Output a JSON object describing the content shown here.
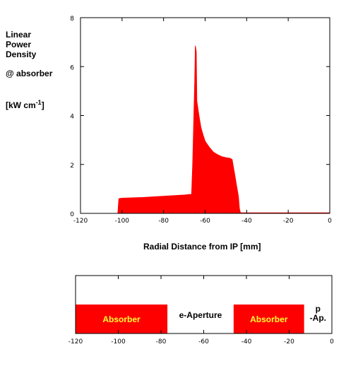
{
  "labels": {
    "y_line1": "Linear",
    "y_line2": "Power",
    "y_line3": "Density",
    "y_line4": "@ absorber",
    "y_unit_base": "[kW cm",
    "y_unit_exp": "-1",
    "y_unit_end": "]",
    "xlabel": "Radial Distance from IP [mm]"
  },
  "colors": {
    "fill": "#ff0000",
    "text_on_fill": "#ffff33",
    "axis": "#000000"
  },
  "chart_data": [
    {
      "type": "area",
      "title": "",
      "xlabel": "Radial Distance from IP [mm]",
      "ylabel": "Linear Power Density @ absorber [kW cm-1]",
      "xlim": [
        -120,
        0
      ],
      "ylim": [
        0,
        8
      ],
      "x_ticks": [
        -120,
        -100,
        -80,
        -60,
        -40,
        -20,
        0
      ],
      "x_tick_labels": [
        "-120",
        "-100",
        "-80",
        "-60",
        "-40",
        "-20",
        "0"
      ],
      "y_ticks": [
        0,
        2,
        4,
        6,
        8
      ],
      "y_tick_labels": [
        "0",
        "2",
        "4",
        "6",
        "8"
      ],
      "grid": false,
      "series": [
        {
          "x": [
            -102,
            -101.5,
            -100,
            -90,
            -80,
            -70,
            -66.5,
            -66,
            -65,
            -64.7,
            -64.3,
            -64,
            -63,
            -62,
            -61,
            -60,
            -58,
            -56,
            -54,
            -52,
            -50,
            -48,
            -47,
            -46,
            -45,
            -44,
            -43.5,
            -43,
            -30,
            -20,
            -10,
            0
          ],
          "y": [
            0,
            0.6,
            0.62,
            0.65,
            0.7,
            0.75,
            0.78,
            2.0,
            5.4,
            6.85,
            6.6,
            4.6,
            4.0,
            3.5,
            3.2,
            2.95,
            2.7,
            2.5,
            2.4,
            2.32,
            2.28,
            2.25,
            2.2,
            1.7,
            1.2,
            0.7,
            0.2,
            0.02,
            0.02,
            0.02,
            0.02,
            0.02
          ]
        }
      ]
    },
    {
      "type": "bar",
      "title": "",
      "xlim": [
        -120,
        0
      ],
      "x_ticks": [
        -120,
        -100,
        -80,
        -60,
        -40,
        -20,
        0
      ],
      "x_tick_labels": [
        "-120",
        "-100",
        "-80",
        "-60",
        "-40",
        "-20",
        "0"
      ],
      "regions": [
        {
          "label": "Absorber",
          "x_start": -120,
          "x_end": -77,
          "filled": true
        },
        {
          "label": "e-Aperture",
          "x_start": -77,
          "x_end": -46,
          "filled": false
        },
        {
          "label": "Absorber",
          "x_start": -46,
          "x_end": -13,
          "filled": true
        },
        {
          "label": "p\n-Ap.",
          "x_start": -13,
          "x_end": 0,
          "filled": false
        }
      ]
    }
  ]
}
